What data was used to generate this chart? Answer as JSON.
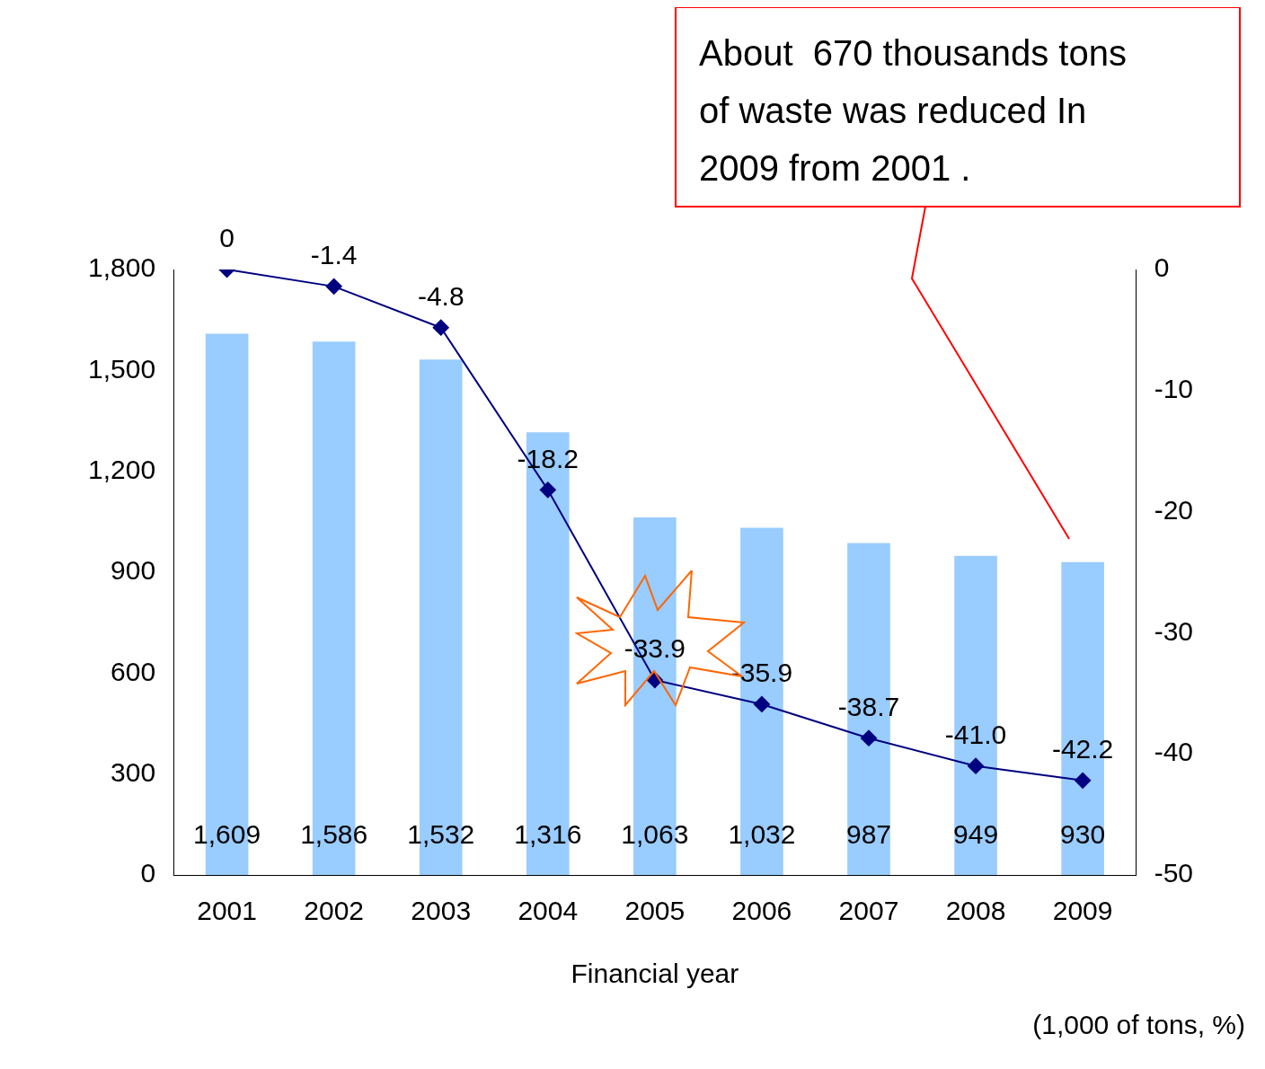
{
  "chart_data": {
    "type": "bar",
    "categories": [
      "2001",
      "2002",
      "2003",
      "2004",
      "2005",
      "2006",
      "2007",
      "2008",
      "2009"
    ],
    "series": [
      {
        "color": "#99ccff",
        "values": [
          1609,
          1586,
          1532,
          1316,
          1063,
          1032,
          987,
          949,
          930
        ],
        "value_labels": [
          "1,609",
          "1,586",
          "1,532",
          "1,316",
          "1,063",
          "1,032",
          "987",
          "949",
          "930"
        ]
      },
      {
        "type": "line",
        "axis": "y2",
        "color": "#000080",
        "marker": "diamond",
        "values": [
          0,
          -1.4,
          -4.8,
          -18.2,
          -33.9,
          -35.9,
          -38.7,
          -41.0,
          -42.2
        ],
        "value_labels": [
          "0",
          "-1.4",
          "-4.8",
          "-18.2",
          "-33.9",
          "-35.9",
          "-38.7",
          "-41.0",
          "-42.2"
        ]
      }
    ],
    "xlabel": "Financial year",
    "ylim": [
      0,
      1800
    ],
    "yticks": [
      0,
      300,
      600,
      900,
      {
        "value": 1200,
        "label": "1,200"
      },
      {
        "value": 1500,
        "label": "1,500"
      },
      {
        "value": 1800,
        "label": "1,800"
      }
    ],
    "y2lim": [
      -50,
      0
    ],
    "y2ticks": [
      -50,
      -40,
      -30,
      -20,
      -10,
      0
    ],
    "grid": false,
    "legend": false,
    "annotations": [
      "About  670 thousands tons of waste was reduced In 2009 from 2001 .",
      "(1,000 of tons, %)"
    ]
  }
}
